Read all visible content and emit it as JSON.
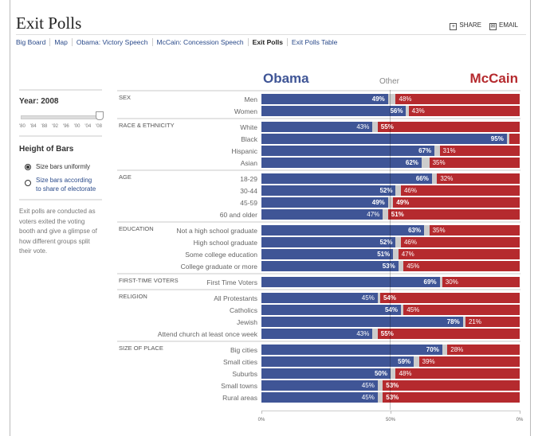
{
  "header": {
    "title": "Exit Polls",
    "share": "SHARE",
    "email": "EMAIL"
  },
  "nav": [
    {
      "label": "Big Board",
      "active": false
    },
    {
      "label": "Map",
      "active": false
    },
    {
      "label": "Obama: Victory Speech",
      "active": false
    },
    {
      "label": "McCain: Concession Speech",
      "active": false
    },
    {
      "label": "Exit Polls",
      "active": true
    },
    {
      "label": "Exit Polls Table",
      "active": false
    }
  ],
  "sidebar": {
    "year_label": "Year: 2008",
    "year_ticks": [
      "'80",
      "'84",
      "'88",
      "'92",
      "'96",
      "'00",
      "'04",
      "'08"
    ],
    "selected_year": "'08",
    "height_title": "Height of Bars",
    "option1": "Size bars uniformly",
    "option2": "Size bars according to share of electorate",
    "selected_option": 1,
    "note": "Exit polls are conducted as voters exited the voting booth and give a glimpse of how different groups split their vote."
  },
  "columns": {
    "obama": "Obama",
    "other": "Other",
    "mccain": "McCain"
  },
  "colors": {
    "obama": "#3f5596",
    "mccain": "#b52a2e",
    "other": "#cccccc"
  },
  "chart_data": {
    "type": "bar",
    "stacked": true,
    "axis_ticks": [
      "0%",
      "50%",
      "0%"
    ],
    "groups": [
      {
        "name": "SEX",
        "rows": [
          {
            "label": "Men",
            "obama": 49,
            "mccain": 48
          },
          {
            "label": "Women",
            "obama": 56,
            "mccain": 43
          }
        ]
      },
      {
        "name": "RACE & ETHNICITY",
        "rows": [
          {
            "label": "White",
            "obama": 43,
            "mccain": 55
          },
          {
            "label": "Black",
            "obama": 95,
            "mccain": 4
          },
          {
            "label": "Hispanic",
            "obama": 67,
            "mccain": 31
          },
          {
            "label": "Asian",
            "obama": 62,
            "mccain": 35
          }
        ]
      },
      {
        "name": "AGE",
        "rows": [
          {
            "label": "18-29",
            "obama": 66,
            "mccain": 32
          },
          {
            "label": "30-44",
            "obama": 52,
            "mccain": 46
          },
          {
            "label": "45-59",
            "obama": 49,
            "mccain": 49
          },
          {
            "label": "60 and older",
            "obama": 47,
            "mccain": 51
          }
        ]
      },
      {
        "name": "EDUCATION",
        "rows": [
          {
            "label": "Not a high school graduate",
            "obama": 63,
            "mccain": 35
          },
          {
            "label": "High school graduate",
            "obama": 52,
            "mccain": 46
          },
          {
            "label": "Some college education",
            "obama": 51,
            "mccain": 47
          },
          {
            "label": "College graduate or more",
            "obama": 53,
            "mccain": 45
          }
        ]
      },
      {
        "name": "FIRST-TIME VOTERS",
        "rows": [
          {
            "label": "First Time Voters",
            "obama": 69,
            "mccain": 30
          }
        ]
      },
      {
        "name": "RELIGION",
        "rows": [
          {
            "label": "All Protestants",
            "obama": 45,
            "mccain": 54
          },
          {
            "label": "Catholics",
            "obama": 54,
            "mccain": 45
          },
          {
            "label": "Jewish",
            "obama": 78,
            "mccain": 21
          },
          {
            "label": "Attend church at least once week",
            "obama": 43,
            "mccain": 55
          }
        ]
      },
      {
        "name": "SIZE OF PLACE",
        "rows": [
          {
            "label": "Big cities",
            "obama": 70,
            "mccain": 28
          },
          {
            "label": "Small cities",
            "obama": 59,
            "mccain": 39
          },
          {
            "label": "Suburbs",
            "obama": 50,
            "mccain": 48
          },
          {
            "label": "Small towns",
            "obama": 45,
            "mccain": 53
          },
          {
            "label": "Rural areas",
            "obama": 45,
            "mccain": 53
          }
        ]
      }
    ]
  }
}
